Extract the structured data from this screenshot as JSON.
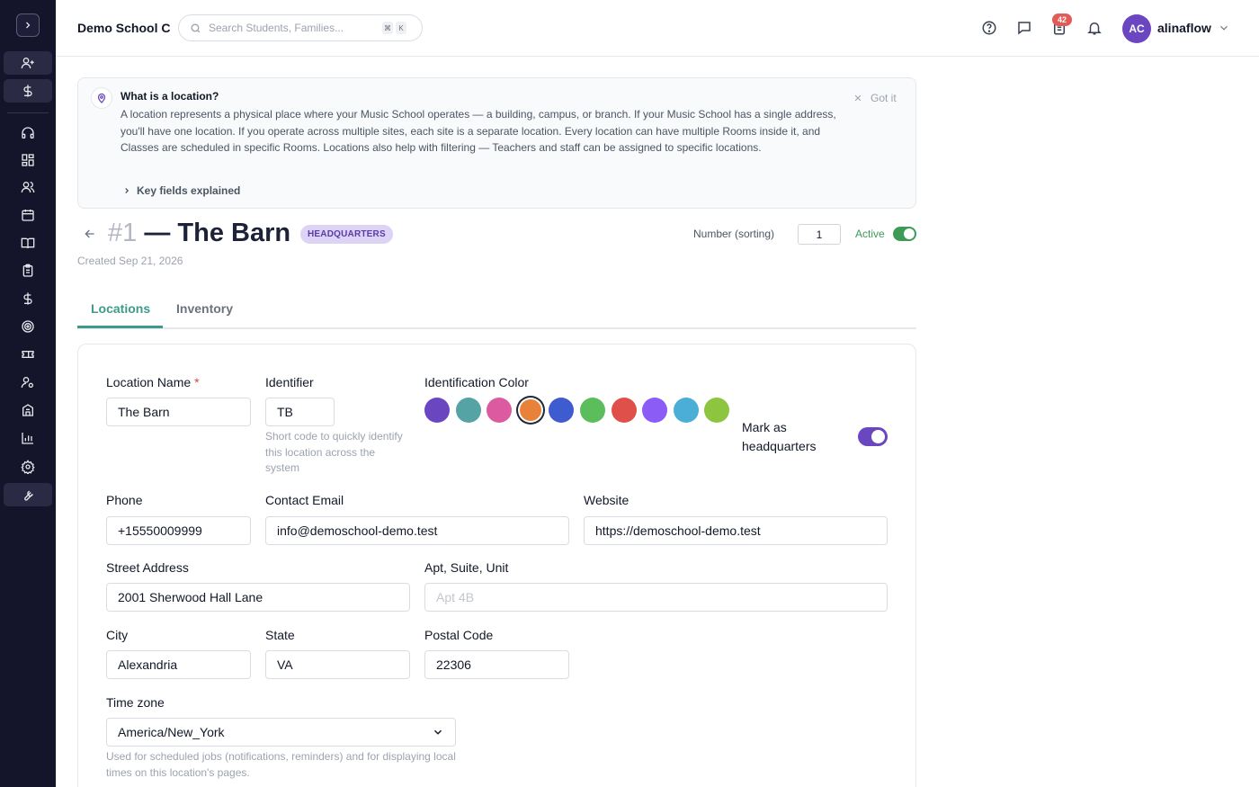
{
  "header": {
    "school_name": "Demo School C",
    "search_placeholder": "Search Students, Families...",
    "kbd_keys": [
      "⌘",
      "K"
    ],
    "notification_count": "42",
    "user": {
      "initials": "AC",
      "name": "alinaflow"
    }
  },
  "sidebar": {
    "items": [
      "user-plus-icon",
      "dollar-icon",
      "headset-icon",
      "dashboard-icon",
      "users-icon",
      "calendar-icon",
      "book-icon",
      "clipboard-icon",
      "dollar-icon",
      "target-icon",
      "ticket-icon",
      "user-settings-icon",
      "building-icon",
      "chart-icon",
      "gear-icon",
      "wrench-icon"
    ]
  },
  "info": {
    "title": "What is a location?",
    "body": "A location represents a physical place where your Music School operates — a building, campus, or branch. If your Music School has a single address, you'll have one location. If you operate across multiple sites, each site is a separate location. Every location can have multiple Rooms inside it, and Classes are scheduled in specific Rooms. Locations also help with filtering — Teachers and staff can be assigned to specific locations.",
    "dismiss": "Got it",
    "key_fields": "Key fields explained"
  },
  "location": {
    "number": "#1",
    "name_title": "— The Barn",
    "hq_badge": "HEADQUARTERS",
    "created": "Created Sep 21, 2026",
    "sort_label": "Number (sorting)",
    "sort_value": "1",
    "active_label": "Active"
  },
  "tabs": [
    "Locations",
    "Inventory"
  ],
  "form": {
    "name_label": "Location Name",
    "name_value": "The Barn",
    "identifier_label": "Identifier",
    "identifier_value": "TB",
    "identifier_hint": "Short code to quickly identify this location across the system",
    "color_label": "Identification Color",
    "colors": [
      "#6b46c1",
      "#55a3a4",
      "#db5aa0",
      "#e8823a",
      "#3f5bd0",
      "#5cbd5c",
      "#e0504b",
      "#8b5cf6",
      "#4aaed6",
      "#8cc63f"
    ],
    "selected_color": "#e8823a",
    "hq_label": "Mark as headquarters",
    "phone_label": "Phone",
    "phone_value": "+15550009999",
    "email_label": "Contact Email",
    "email_value": "info@demoschool-demo.test",
    "website_label": "Website",
    "website_value": "https://demoschool-demo.test",
    "street_label": "Street Address",
    "street_value": "2001 Sherwood Hall Lane",
    "apt_label": "Apt, Suite, Unit",
    "apt_placeholder": "Apt 4B",
    "city_label": "City",
    "city_value": "Alexandria",
    "state_label": "State",
    "state_value": "VA",
    "postal_label": "Postal Code",
    "postal_value": "22306",
    "tz_label": "Time zone",
    "tz_value": "America/New_York",
    "tz_hint": "Used for scheduled jobs (notifications, reminders) and for displaying local times on this location's pages."
  }
}
